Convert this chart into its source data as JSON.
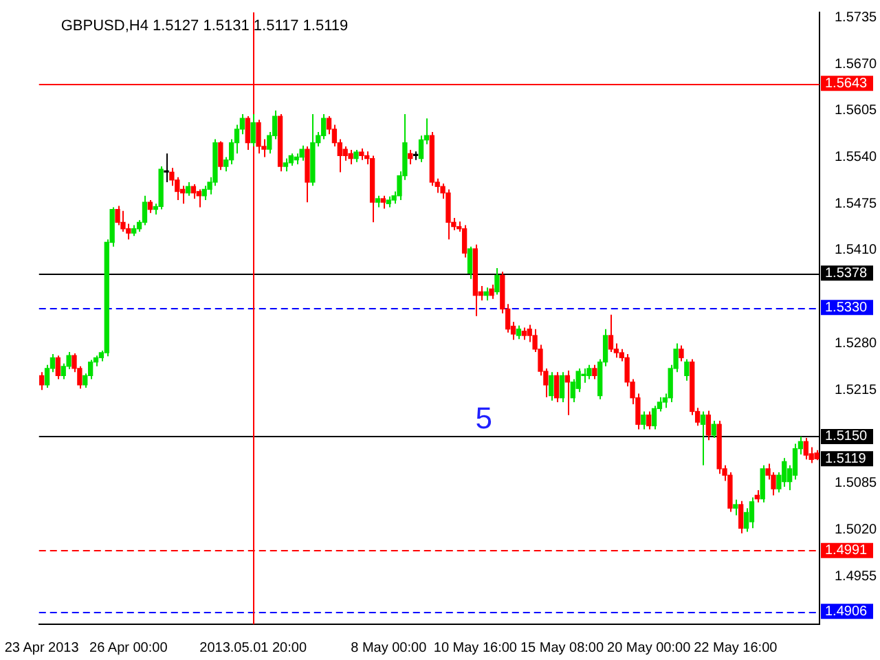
{
  "chart_data": {
    "type": "candlestick",
    "title": "GBPUSD,H4 1.5127 1.5131 1.5117 1.5119",
    "categories": [
      "23 Apr 2013",
      null,
      null,
      null,
      null,
      null,
      null,
      null,
      null,
      null,
      null,
      null,
      null,
      null,
      null,
      null,
      "26 Apr 00:00",
      null,
      null,
      null,
      null,
      null,
      null,
      null,
      null,
      null,
      null,
      null,
      null,
      null,
      null,
      null,
      null,
      null,
      null,
      null,
      null,
      null,
      null,
      "2013.05.01 20:00",
      null,
      null,
      null,
      null,
      null,
      null,
      null,
      null,
      null,
      null,
      null,
      null,
      null,
      null,
      null,
      null,
      null,
      null,
      null,
      null,
      null,
      null,
      null,
      null,
      "8 May 00:00",
      null,
      null,
      null,
      null,
      null,
      null,
      null,
      null,
      null,
      null,
      null,
      null,
      null,
      null,
      null,
      "10 May 16:00",
      null,
      null,
      null,
      null,
      null,
      null,
      null,
      null,
      null,
      null,
      null,
      null,
      null,
      null,
      null,
      "15 May 08:00",
      null,
      null,
      null,
      null,
      null,
      null,
      null,
      null,
      null,
      null,
      null,
      null,
      null,
      null,
      null,
      "20 May 00:00",
      null,
      null,
      null,
      null,
      null,
      null,
      null,
      null,
      null,
      null,
      null,
      null,
      null,
      null,
      null,
      "22 May 16:00",
      null,
      null,
      null,
      null,
      null,
      null,
      null,
      null,
      null,
      null,
      null,
      null,
      null,
      null,
      null
    ],
    "ohlc": [
      [
        1.5235,
        1.524,
        1.5215,
        1.5222
      ],
      [
        1.5222,
        1.525,
        1.5218,
        1.5245
      ],
      [
        1.5245,
        1.5265,
        1.524,
        1.526
      ],
      [
        1.526,
        1.5263,
        1.523,
        1.5235
      ],
      [
        1.5235,
        1.5252,
        1.523,
        1.5248
      ],
      [
        1.5248,
        1.5268,
        1.5244,
        1.5263
      ],
      [
        1.5263,
        1.5266,
        1.524,
        1.5245
      ],
      [
        1.5245,
        1.5248,
        1.5217,
        1.5222
      ],
      [
        1.5222,
        1.5238,
        1.5218,
        1.5235
      ],
      [
        1.5235,
        1.5257,
        1.523,
        1.5254
      ],
      [
        1.5254,
        1.5263,
        1.5248,
        1.526
      ],
      [
        1.526,
        1.527,
        1.5255,
        1.5267
      ],
      [
        1.5267,
        1.5425,
        1.5262,
        1.5421
      ],
      [
        1.5421,
        1.547,
        1.5415,
        1.5467
      ],
      [
        1.5467,
        1.5472,
        1.5445,
        1.5449
      ],
      [
        1.5449,
        1.5465,
        1.5436,
        1.544
      ],
      [
        1.544,
        1.5447,
        1.5425,
        1.5434
      ],
      [
        1.5434,
        1.5445,
        1.543,
        1.544
      ],
      [
        1.544,
        1.5452,
        1.5436,
        1.5449
      ],
      [
        1.5449,
        1.5486,
        1.5445,
        1.5477
      ],
      [
        1.5477,
        1.548,
        1.5462,
        1.5467
      ],
      [
        1.5467,
        1.5475,
        1.546,
        1.5471
      ],
      [
        1.5471,
        1.5527,
        1.5467,
        1.5523
      ],
      [
        1.5519,
        1.5545,
        1.5505,
        1.5519
      ],
      [
        1.5519,
        1.5525,
        1.55,
        1.5508
      ],
      [
        1.5508,
        1.5512,
        1.548,
        1.5492
      ],
      [
        1.5495,
        1.55,
        1.5475,
        1.549
      ],
      [
        1.549,
        1.5505,
        1.5486,
        1.5499
      ],
      [
        1.5499,
        1.5502,
        1.5482,
        1.549
      ],
      [
        1.5492,
        1.5495,
        1.547,
        1.5486
      ],
      [
        1.5486,
        1.55,
        1.548,
        1.5495
      ],
      [
        1.5495,
        1.5512,
        1.5488,
        1.5505
      ],
      [
        1.5505,
        1.5565,
        1.55,
        1.556
      ],
      [
        1.556,
        1.5562,
        1.5522,
        1.5527
      ],
      [
        1.5527,
        1.554,
        1.552,
        1.5536
      ],
      [
        1.5536,
        1.5565,
        1.553,
        1.556
      ],
      [
        1.556,
        1.5585,
        1.5545,
        1.5579
      ],
      [
        1.5579,
        1.56,
        1.5572,
        1.5594
      ],
      [
        1.5594,
        1.5597,
        1.555,
        1.556
      ],
      [
        1.556,
        1.56,
        1.5555,
        1.5588
      ],
      [
        1.5588,
        1.5592,
        1.5545,
        1.5555
      ],
      [
        1.5555,
        1.5565,
        1.554,
        1.5551
      ],
      [
        1.5551,
        1.5575,
        1.5545,
        1.557
      ],
      [
        1.557,
        1.5605,
        1.5565,
        1.5597
      ],
      [
        1.5597,
        1.56,
        1.552,
        1.5527
      ],
      [
        1.5527,
        1.5538,
        1.552,
        1.5532
      ],
      [
        1.5532,
        1.5545,
        1.5528,
        1.5542
      ],
      [
        1.5536,
        1.5545,
        1.553,
        1.554
      ],
      [
        1.554,
        1.5556,
        1.5535,
        1.5551
      ],
      [
        1.5551,
        1.5555,
        1.5477,
        1.5505
      ],
      [
        1.5505,
        1.56,
        1.55,
        1.556
      ],
      [
        1.556,
        1.5575,
        1.5555,
        1.557
      ],
      [
        1.557,
        1.56,
        1.5565,
        1.5594
      ],
      [
        1.5594,
        1.5597,
        1.5572,
        1.5579
      ],
      [
        1.5579,
        1.5585,
        1.5555,
        1.556
      ],
      [
        1.556,
        1.5565,
        1.5519,
        1.5542
      ],
      [
        1.5551,
        1.5555,
        1.5535,
        1.5542
      ],
      [
        1.5545,
        1.555,
        1.553,
        1.5538
      ],
      [
        1.5538,
        1.555,
        1.5533,
        1.5547
      ],
      [
        1.5547,
        1.5552,
        1.5536,
        1.5542
      ],
      [
        1.5542,
        1.5548,
        1.553,
        1.5538
      ],
      [
        1.5538,
        1.5542,
        1.5449,
        1.5477
      ],
      [
        1.5477,
        1.5486,
        1.547,
        1.5482
      ],
      [
        1.5482,
        1.5486,
        1.5468,
        1.5477
      ],
      [
        1.5475,
        1.5485,
        1.547,
        1.548
      ],
      [
        1.548,
        1.5492,
        1.5475,
        1.5486
      ],
      [
        1.5486,
        1.552,
        1.548,
        1.5514
      ],
      [
        1.5514,
        1.56,
        1.5508,
        1.556
      ],
      [
        1.5545,
        1.555,
        1.553,
        1.5538
      ],
      [
        1.5542,
        1.5548,
        1.5536,
        1.5542
      ],
      [
        1.5538,
        1.557,
        1.5533,
        1.5564
      ],
      [
        1.5564,
        1.5594,
        1.5558,
        1.557
      ],
      [
        1.557,
        1.5575,
        1.55,
        1.5505
      ],
      [
        1.5505,
        1.551,
        1.549,
        1.5499
      ],
      [
        1.5499,
        1.5503,
        1.5482,
        1.549
      ],
      [
        1.549,
        1.5495,
        1.5425,
        1.5449
      ],
      [
        1.5449,
        1.5455,
        1.5438,
        1.5443
      ],
      [
        1.5443,
        1.545,
        1.5436,
        1.544
      ],
      [
        1.544,
        1.5445,
        1.54,
        1.5406
      ],
      [
        1.5378,
        1.5415,
        1.537,
        1.5412
      ],
      [
        1.5412,
        1.5418,
        1.5318,
        1.5347
      ],
      [
        1.5352,
        1.536,
        1.534,
        1.5347
      ],
      [
        1.5347,
        1.5358,
        1.534,
        1.5352
      ],
      [
        1.5356,
        1.5362,
        1.5342,
        1.5347
      ],
      [
        1.5352,
        1.5385,
        1.5348,
        1.5375
      ],
      [
        1.5375,
        1.538,
        1.5322,
        1.5328
      ],
      [
        1.5328,
        1.5335,
        1.5295,
        1.53
      ],
      [
        1.5304,
        1.531,
        1.5285,
        1.5293
      ],
      [
        1.5291,
        1.5305,
        1.5286,
        1.53
      ],
      [
        1.5297,
        1.5302,
        1.5285,
        1.5291
      ],
      [
        1.53,
        1.5306,
        1.5282,
        1.5291
      ],
      [
        1.5291,
        1.53,
        1.5268,
        1.5272
      ],
      [
        1.5272,
        1.5278,
        1.5235,
        1.5241
      ],
      [
        1.5241,
        1.5245,
        1.5205,
        1.5222
      ],
      [
        1.5207,
        1.524,
        1.52,
        1.5235
      ],
      [
        1.5235,
        1.524,
        1.5198,
        1.5204
      ],
      [
        1.5204,
        1.524,
        1.5198,
        1.5235
      ],
      [
        1.5235,
        1.5242,
        1.518,
        1.5226
      ],
      [
        1.5204,
        1.523,
        1.5198,
        1.5226
      ],
      [
        1.5217,
        1.5245,
        1.5212,
        1.5241
      ],
      [
        1.5235,
        1.5245,
        1.5225,
        1.5237
      ],
      [
        1.5235,
        1.525,
        1.523,
        1.5245
      ],
      [
        1.5245,
        1.525,
        1.523,
        1.5235
      ],
      [
        1.5207,
        1.5258,
        1.5202,
        1.5254
      ],
      [
        1.5254,
        1.53,
        1.5248,
        1.5291
      ],
      [
        1.5291,
        1.532,
        1.5268,
        1.5272
      ],
      [
        1.5272,
        1.528,
        1.526,
        1.5267
      ],
      [
        1.5267,
        1.5272,
        1.5255,
        1.526
      ],
      [
        1.526,
        1.5265,
        1.522,
        1.5226
      ],
      [
        1.5226,
        1.523,
        1.5195,
        1.5204
      ],
      [
        1.5204,
        1.521,
        1.516,
        1.5167
      ],
      [
        1.5167,
        1.5185,
        1.516,
        1.518
      ],
      [
        1.518,
        1.5185,
        1.516,
        1.5165
      ],
      [
        1.5165,
        1.5193,
        1.516,
        1.5189
      ],
      [
        1.5189,
        1.5205,
        1.5185,
        1.5198
      ],
      [
        1.5198,
        1.521,
        1.519,
        1.5204
      ],
      [
        1.5204,
        1.525,
        1.5198,
        1.5245
      ],
      [
        1.5245,
        1.528,
        1.524,
        1.5272
      ],
      [
        1.5272,
        1.5277,
        1.5255,
        1.526
      ],
      [
        1.5235,
        1.5258,
        1.5228,
        1.5254
      ],
      [
        1.5254,
        1.5258,
        1.518,
        1.5185
      ],
      [
        1.5185,
        1.519,
        1.5165,
        1.517
      ],
      [
        1.5167,
        1.5185,
        1.511,
        1.518
      ],
      [
        1.518,
        1.5186,
        1.5145,
        1.5152
      ],
      [
        1.5152,
        1.5172,
        1.5148,
        1.5167
      ],
      [
        1.5167,
        1.5172,
        1.5098,
        1.5105
      ],
      [
        1.5105,
        1.511,
        1.5088,
        1.5096
      ],
      [
        1.5096,
        1.51,
        1.5045,
        1.505
      ],
      [
        1.505,
        1.5062,
        1.504,
        1.5055
      ],
      [
        1.5055,
        1.506,
        1.5015,
        1.5022
      ],
      [
        1.5022,
        1.505,
        1.5017,
        1.5044
      ],
      [
        1.5031,
        1.5065,
        1.5022,
        1.5059
      ],
      [
        1.5068,
        1.5075,
        1.5058,
        1.5063
      ],
      [
        1.5063,
        1.511,
        1.5058,
        1.5105
      ],
      [
        1.5105,
        1.5112,
        1.509,
        1.5096
      ],
      [
        1.5096,
        1.51,
        1.5068,
        1.5077
      ],
      [
        1.5077,
        1.51,
        1.5072,
        1.5096
      ],
      [
        1.5087,
        1.512,
        1.508,
        1.5115
      ],
      [
        1.5087,
        1.511,
        1.5075,
        1.5105
      ],
      [
        1.5096,
        1.514,
        1.509,
        1.5133
      ],
      [
        1.5133,
        1.515,
        1.5125,
        1.5143
      ],
      [
        1.5143,
        1.5148,
        1.5118,
        1.5124
      ],
      [
        1.5126,
        1.5135,
        1.5113,
        1.5118
      ],
      [
        1.5127,
        1.5131,
        1.5117,
        1.5119
      ]
    ],
    "colors": [
      "#ff0000",
      "#00e000",
      "#00e000",
      "#ff0000",
      "#00e000",
      "#00e000",
      "#ff0000",
      "#ff0000",
      "#00e000",
      "#00e000",
      "#00e000",
      "#00e000",
      "#00e000",
      "#00e000",
      "#ff0000",
      "#ff0000",
      "#ff0000",
      "#00e000",
      "#00e000",
      "#00e000",
      "#ff0000",
      "#00e000",
      "#00e000",
      "#000000",
      "#ff0000",
      "#ff0000",
      "#ff0000",
      "#00e000",
      "#ff0000",
      "#ff0000",
      "#00e000",
      "#00e000",
      "#00e000",
      "#ff0000",
      "#00e000",
      "#00e000",
      "#00e000",
      "#00e000",
      "#ff0000",
      "#00e000",
      "#ff0000",
      "#ff0000",
      "#00e000",
      "#00e000",
      "#ff0000",
      "#00e000",
      "#00e000",
      "#00e000",
      "#00e000",
      "#ff0000",
      "#00e000",
      "#00e000",
      "#00e000",
      "#ff0000",
      "#ff0000",
      "#ff0000",
      "#ff0000",
      "#ff0000",
      "#00e000",
      "#ff0000",
      "#ff0000",
      "#ff0000",
      "#00e000",
      "#ff0000",
      "#00e000",
      "#00e000",
      "#00e000",
      "#00e000",
      "#ff0000",
      "#000000",
      "#00e000",
      "#00e000",
      "#ff0000",
      "#ff0000",
      "#ff0000",
      "#ff0000",
      "#ff0000",
      "#ff0000",
      "#ff0000",
      "#00e000",
      "#ff0000",
      "#ff0000",
      "#00e000",
      "#ff0000",
      "#00e000",
      "#ff0000",
      "#ff0000",
      "#ff0000",
      "#00e000",
      "#ff0000",
      "#ff0000",
      "#ff0000",
      "#ff0000",
      "#ff0000",
      "#00e000",
      "#ff0000",
      "#00e000",
      "#ff0000",
      "#00e000",
      "#00e000",
      "#00e000",
      "#00e000",
      "#ff0000",
      "#00e000",
      "#00e000",
      "#ff0000",
      "#ff0000",
      "#ff0000",
      "#ff0000",
      "#ff0000",
      "#ff0000",
      "#00e000",
      "#ff0000",
      "#00e000",
      "#00e000",
      "#00e000",
      "#00e000",
      "#00e000",
      "#ff0000",
      "#00e000",
      "#ff0000",
      "#ff0000",
      "#00e000",
      "#ff0000",
      "#00e000",
      "#ff0000",
      "#ff0000",
      "#ff0000",
      "#00e000",
      "#ff0000",
      "#00e000",
      "#00e000",
      "#ff0000",
      "#00e000",
      "#ff0000",
      "#ff0000",
      "#00e000",
      "#00e000",
      "#00e000",
      "#00e000",
      "#00e000",
      "#ff0000",
      "#ff0000",
      "#ff0000"
    ],
    "ylim": [
      1.4888,
      1.5742
    ],
    "yticks": [
      1.5735,
      {
        "value": 1.567,
        "label": "1.5670"
      },
      1.5605,
      {
        "value": 1.554,
        "label": "1.5540"
      },
      1.5475,
      {
        "value": 1.541,
        "label": "1.5410"
      },
      {
        "value": 1.528,
        "label": "1.5280"
      },
      1.5215,
      1.5085,
      {
        "value": 1.502,
        "label": "1.5020"
      },
      1.4955
    ],
    "ref_lines": [
      {
        "axis": "y",
        "value": 1.5643,
        "label": "1.5643",
        "color": "#ff0000",
        "line_style": "solid"
      },
      {
        "axis": "y",
        "value": 1.5378,
        "label": "1.5378",
        "color": "#000000",
        "line_style": "solid"
      },
      {
        "axis": "y",
        "value": 1.533,
        "label": "1.5330",
        "color": "#0000ff",
        "line_style": "dashed"
      },
      {
        "axis": "y",
        "value": 1.515,
        "label": "1.5150",
        "color": "#000000",
        "line_style": "solid"
      },
      {
        "axis": "y",
        "value": 1.4991,
        "label": "1.4991",
        "color": "#ff0000",
        "line_style": "dashed"
      },
      {
        "axis": "y",
        "value": 1.4906,
        "label": "1.4906",
        "color": "#0000ff",
        "line_style": "dashed"
      },
      {
        "axis": "x",
        "value": "2013.05.01 20:00",
        "color": "#ff0000",
        "line_style": "solid"
      }
    ],
    "annotations": [
      "5",
      "1.5119"
    ]
  }
}
